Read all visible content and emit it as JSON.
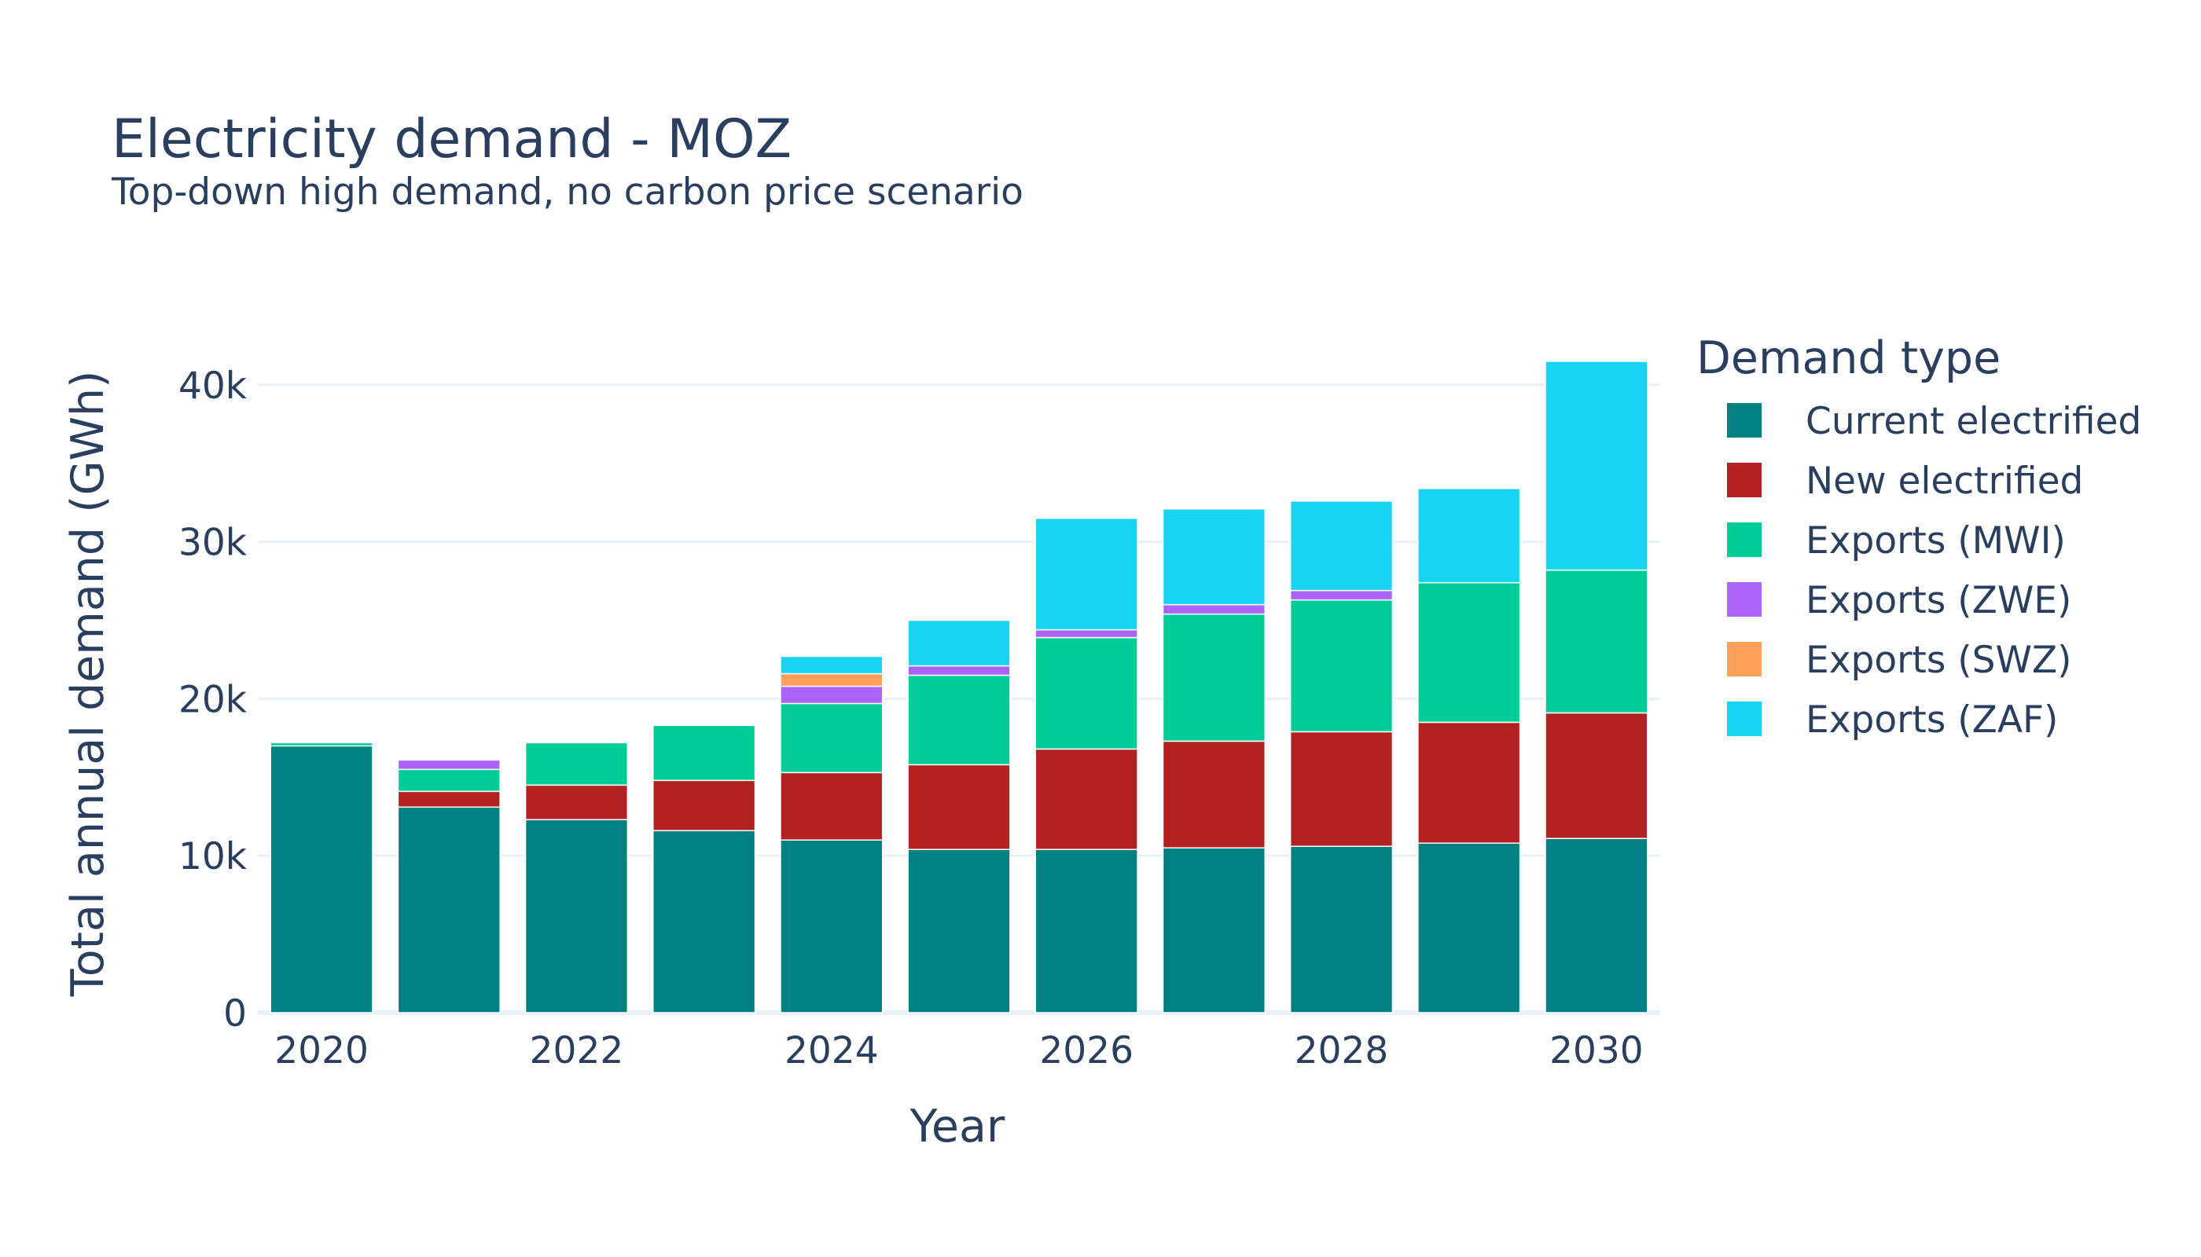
{
  "chart_data": {
    "type": "bar",
    "stacked": true,
    "title": "Electricity demand - MOZ",
    "subtitle": "Top-down high demand, no carbon price scenario",
    "xlabel": "Year",
    "ylabel": "Total annual demand (GWh)",
    "x": [
      2020,
      2021,
      2022,
      2023,
      2024,
      2025,
      2026,
      2027,
      2028,
      2029,
      2030
    ],
    "x_ticks": [
      "2020",
      "2022",
      "2024",
      "2026",
      "2028",
      "2030"
    ],
    "x_tick_values": [
      2020,
      2022,
      2024,
      2026,
      2028,
      2030
    ],
    "ylim": [
      0,
      43000
    ],
    "y_ticks": [
      0,
      10000,
      20000,
      30000,
      40000
    ],
    "y_tick_labels": [
      "0",
      "10k",
      "20k",
      "30k",
      "40k"
    ],
    "grid": true,
    "legend_title": "Demand type",
    "legend_position": "right",
    "series": [
      {
        "name": "Current electrified",
        "color": "#008080",
        "values": [
          17000,
          13100,
          12300,
          11600,
          11000,
          10400,
          10400,
          10500,
          10600,
          10800,
          11100
        ]
      },
      {
        "name": "New electrified",
        "color": "#b22222",
        "values": [
          0,
          1000,
          2200,
          3200,
          4300,
          5400,
          6400,
          6800,
          7300,
          7700,
          8000
        ]
      },
      {
        "name": "Exports (MWI)",
        "color": "#00cc96",
        "values": [
          200,
          1400,
          2700,
          3500,
          4400,
          5700,
          7100,
          8100,
          8400,
          8900,
          9100
        ]
      },
      {
        "name": "Exports (ZWE)",
        "color": "#ab63fa",
        "values": [
          0,
          600,
          0,
          0,
          1100,
          600,
          500,
          600,
          600,
          0,
          0
        ]
      },
      {
        "name": "Exports (SWZ)",
        "color": "#ffa15a",
        "values": [
          0,
          0,
          0,
          0,
          800,
          0,
          0,
          0,
          0,
          0,
          0
        ]
      },
      {
        "name": "Exports (ZAF)",
        "color": "#19d3f3",
        "values": [
          0,
          0,
          0,
          0,
          1100,
          2900,
          7100,
          6100,
          5700,
          6000,
          13300
        ]
      }
    ]
  }
}
